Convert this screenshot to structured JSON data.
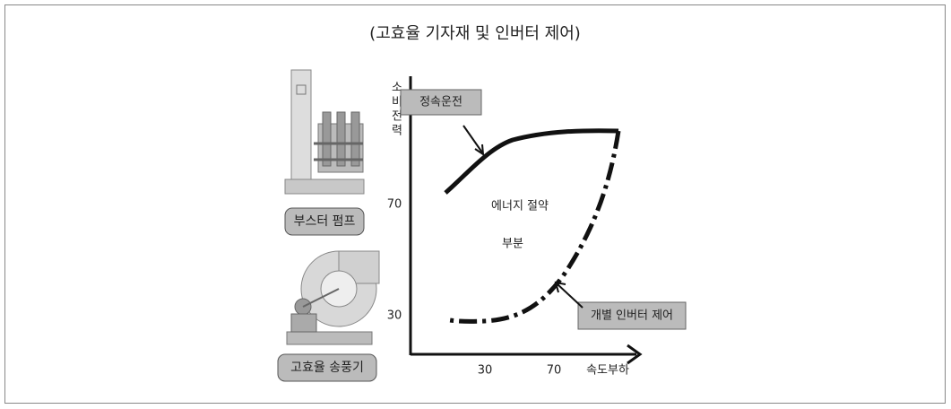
{
  "title": "(고효율 기자재 및 인버터 제어)",
  "equipment": {
    "booster_pump": "부스터 펌프",
    "fan": "고효율 송풍기"
  },
  "graph": {
    "y_axis_label": "소비전력",
    "x_axis_label": "속도부하",
    "y_ticks": [
      "70",
      "30"
    ],
    "x_ticks": [
      "30",
      "70"
    ],
    "constant_speed_label": "정속운전",
    "inverter_label": "개별 인버터 제어",
    "savings_label": [
      "에너지 절약",
      "부분"
    ]
  }
}
